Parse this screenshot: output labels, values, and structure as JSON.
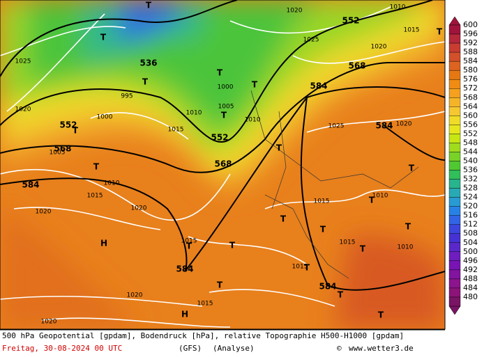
{
  "colorbar": {
    "values": [
      600,
      596,
      592,
      588,
      584,
      580,
      576,
      572,
      568,
      564,
      560,
      556,
      552,
      548,
      544,
      540,
      536,
      532,
      528,
      524,
      520,
      516,
      512,
      508,
      504,
      500,
      496,
      492,
      488,
      484,
      480
    ],
    "colors": [
      "#a0143c",
      "#b4283c",
      "#c83c32",
      "#d2502a",
      "#dc6420",
      "#e67814",
      "#f08c14",
      "#f5a01e",
      "#f5b428",
      "#f5c832",
      "#f0dc28",
      "#e6e61e",
      "#c8e614",
      "#a0dc1e",
      "#78d228",
      "#50c832",
      "#32be5a",
      "#28b48c",
      "#28aab4",
      "#289bd2",
      "#2882e6",
      "#3264e6",
      "#3c46dc",
      "#4632d2",
      "#5a28c8",
      "#6e1ebe",
      "#7814b4",
      "#8214a0",
      "#8c148c",
      "#8c1478",
      "#7a1464"
    ]
  },
  "map_labels": {
    "geopotential": [
      "552",
      "568",
      "584",
      "584",
      "552",
      "568",
      "584",
      "552",
      "568",
      "584",
      "584",
      "536"
    ],
    "pressure": [
      "1010",
      "1020",
      "1015",
      "1020",
      "1025",
      "1025",
      "1020",
      "995",
      "1000",
      "1005",
      "1010",
      "1015",
      "1010",
      "1025",
      "1020",
      "1010",
      "1015",
      "1020",
      "1020",
      "1015",
      "1020",
      "1020",
      "1015",
      "1015",
      "1010",
      "1015",
      "1015",
      "1010",
      "1005",
      "1000"
    ],
    "lows": [
      "T",
      "T",
      "T",
      "T",
      "T",
      "T",
      "T",
      "T",
      "T",
      "T",
      "T",
      "T",
      "T",
      "T",
      "T",
      "T",
      "T",
      "T",
      "T",
      "T",
      "T",
      "T"
    ],
    "highs": [
      "H",
      "H"
    ]
  },
  "footer": {
    "description": "500 hPa Geopotential [gpdam], Bodendruck [hPa], relative Topographie H500-H1000 [gpdam]",
    "date": "Freitag, 30-08-2024  00 UTC",
    "model": "(GFS)",
    "run": "(Analyse)",
    "copyright": "©",
    "site": "www.wetter3.de"
  }
}
